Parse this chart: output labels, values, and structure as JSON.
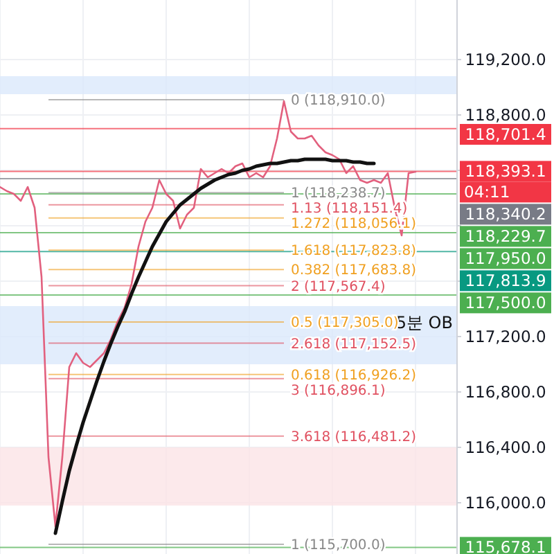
{
  "chart_data": {
    "type": "line",
    "categories": [
      null,
      null,
      null,
      null,
      null,
      null,
      null,
      null,
      null,
      null,
      null,
      null,
      null,
      null,
      null,
      null,
      null,
      null,
      null,
      null,
      null,
      null,
      null,
      null,
      null,
      null,
      null,
      null,
      null,
      null,
      null,
      null,
      null,
      null,
      null,
      null,
      null,
      null,
      null,
      null,
      null,
      null,
      null,
      null,
      null,
      null,
      null,
      null,
      null,
      null,
      null,
      null,
      null,
      null,
      null,
      null,
      null,
      null,
      null,
      null,
      null,
      null,
      null,
      null,
      null,
      null,
      null
    ],
    "series": [
      {
        "color": "#e2607e",
        "values": [
          118280,
          118250,
          118230,
          118180,
          118280,
          118130,
          117630,
          116330,
          115830,
          116330,
          116980,
          117080,
          117010,
          116980,
          117030,
          117080,
          117180,
          117310,
          117410,
          117580,
          117850,
          118030,
          118130,
          118330,
          118230,
          118180,
          117980,
          118080,
          118130,
          118410,
          118350,
          118380,
          118410,
          118380,
          118430,
          118450,
          118350,
          118380,
          118350,
          118430,
          118630,
          118900,
          118680,
          118630,
          118630,
          118650,
          118580,
          118530,
          118510,
          118480,
          118380,
          118430,
          118330,
          118310,
          118330,
          118310,
          118380,
          118130,
          117930,
          118380,
          118390,
          null,
          null,
          null,
          null,
          null,
          null
        ]
      },
      {
        "color": "#111111",
        "values": [
          null,
          null,
          null,
          null,
          null,
          null,
          null,
          null,
          115780,
          116010,
          116230,
          116410,
          116580,
          116730,
          116880,
          117020,
          117150,
          117270,
          117380,
          117510,
          117630,
          117740,
          117850,
          117940,
          118030,
          118090,
          118150,
          118190,
          118230,
          118270,
          118300,
          118330,
          118350,
          118370,
          118380,
          118400,
          118410,
          118430,
          118440,
          118450,
          118450,
          118460,
          118470,
          118470,
          118480,
          118480,
          118480,
          118480,
          118470,
          118470,
          118470,
          118460,
          118460,
          118450,
          118450,
          null,
          null,
          null,
          null,
          null,
          null,
          null,
          null,
          null,
          null,
          null,
          null
        ]
      }
    ],
    "ylim": [
      115630,
      119630
    ],
    "yticks": [
      {
        "value": 116000,
        "label": "116,000.0"
      },
      {
        "value": 116400,
        "label": "116,400.0"
      },
      {
        "value": 116800,
        "label": "116,800.0"
      },
      {
        "value": 117200,
        "label": "117,200.0"
      },
      {
        "value": 117600,
        "label": null
      },
      {
        "value": 118000,
        "label": null
      },
      {
        "value": 118400,
        "label": null
      },
      {
        "value": 118800,
        "label": "118,800.0"
      },
      {
        "value": 119200,
        "label": "119,200.0"
      }
    ],
    "y2lim": [
      115630,
      119630
    ],
    "grid": true,
    "tick_labels": "y",
    "bands": [
      {
        "axis": "y",
        "from": 118950,
        "to": 119080,
        "color": "#dbe8fb"
      },
      {
        "axis": "y",
        "from": 117000,
        "to": 117420,
        "label": "5분 OB",
        "color": "#dbe8fb"
      },
      {
        "axis": "y",
        "from": 115980,
        "to": 116400,
        "color": "#fbe3e6"
      }
    ],
    "ref_lines": [
      {
        "axis": "y",
        "value": 118910.0,
        "label": "0 (118,910.0)",
        "color": "#888888"
      },
      {
        "axis": "y",
        "value": 118238.7,
        "label": "1 (118,238.7)",
        "color": "#888888"
      },
      {
        "axis": "y",
        "value": 118151.4,
        "label": "1.13 (118,151.4)",
        "color": "#e05060"
      },
      {
        "axis": "y",
        "value": 118056.1,
        "label": "1.272 (118,056.1)",
        "color": "#f0a020"
      },
      {
        "axis": "y",
        "value": 117823.8,
        "label": "1.618 (117,823.8)",
        "color": "#f0a020"
      },
      {
        "axis": "y",
        "value": 117683.8,
        "label": "0.382 (117,683.8)",
        "color": "#f0a020"
      },
      {
        "axis": "y",
        "value": 117567.4,
        "label": "2 (117,567.4)",
        "color": "#e05060"
      },
      {
        "axis": "y",
        "value": 117305.0,
        "label": "0.5 (117,305.0)",
        "color": "#f0a020"
      },
      {
        "axis": "y",
        "value": 117152.5,
        "label": "2.618 (117,152.5)",
        "color": "#e05060"
      },
      {
        "axis": "y",
        "value": 116926.2,
        "label": "0.618 (116,926.2)",
        "color": "#f0a020"
      },
      {
        "axis": "y",
        "value": 116896.1,
        "label": "3 (116,896.1)",
        "color": "#e05060"
      },
      {
        "axis": "y",
        "value": 116481.2,
        "label": "3.618 (116,481.2)",
        "color": "#e05060"
      },
      {
        "axis": "y",
        "value": 115700.0,
        "label": "1 (115,700.0)",
        "color": "#888888"
      },
      {
        "axis": "y2",
        "value": 118701.4,
        "label": "118,701.4",
        "color": "#f23645"
      },
      {
        "axis": "y2",
        "value": 118393.1,
        "label": "118,393.1",
        "color": "#f23645"
      },
      {
        "axis": "y2",
        "value": 118340.2,
        "label": "118,340.2",
        "color": "#787b86"
      },
      {
        "axis": "y2",
        "value": 118229.7,
        "label": "118,229.7",
        "color": "#4caf50"
      },
      {
        "axis": "y2",
        "value": 117950.0,
        "label": "117,950.0",
        "color": "#4caf50"
      },
      {
        "axis": "y2",
        "value": 117813.9,
        "label": "117,813.9",
        "color": "#089981"
      },
      {
        "axis": "y2",
        "value": 117500.0,
        "label": "117,500.0",
        "color": "#4caf50"
      },
      {
        "axis": "y2",
        "value": 115678.1,
        "label": "115,678.1",
        "color": "#4caf50"
      }
    ],
    "annotations": [
      "04:11"
    ]
  }
}
